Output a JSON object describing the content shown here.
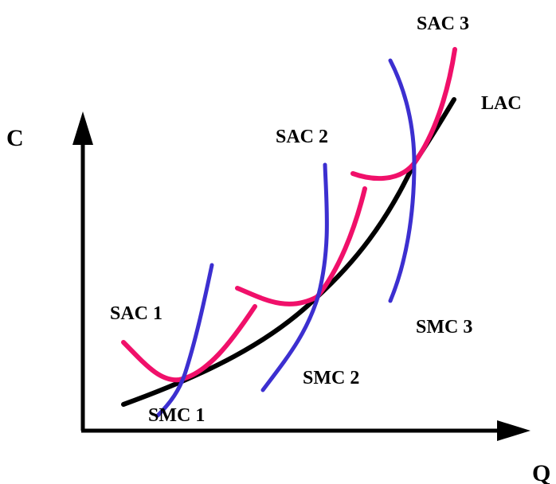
{
  "colors": {
    "axis": "#000000",
    "lac": "#000000",
    "sac": "#f0106a",
    "smc": "#3c2fd0",
    "background": "#ffffff"
  },
  "axes": {
    "y_label": "C",
    "x_label": "Q"
  },
  "labels": {
    "lac": "LAC",
    "sac1": "SAC 1",
    "sac2": "SAC 2",
    "sac3": "SAC 3",
    "smc1": "SMC 1",
    "smc2": "SMC 2",
    "smc3": "SMC 3"
  }
}
